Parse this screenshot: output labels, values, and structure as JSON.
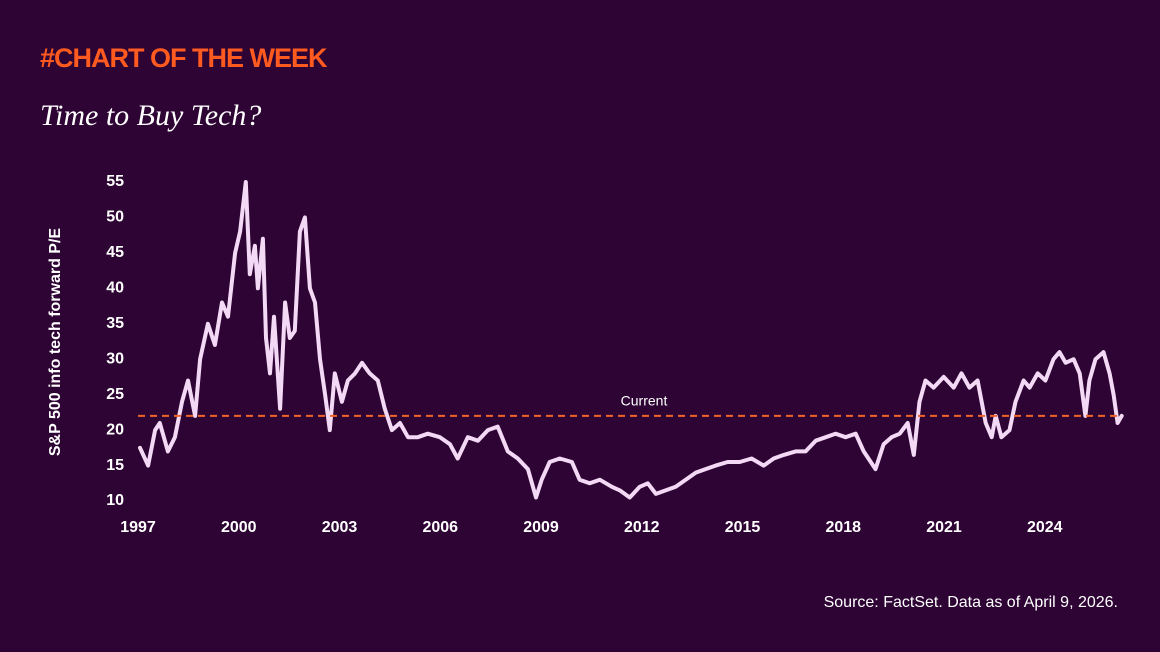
{
  "chart_data": {
    "type": "line",
    "kicker": "#CHART OF THE WEEK",
    "title": "Time to Buy Tech?",
    "y_label": "S&P 500 info tech forward P/E",
    "source": "Source: FactSet. Data as of April 9, 2026.",
    "color": "#f3d9f5",
    "reference_line": {
      "value": 22,
      "label": "Current",
      "color": "#f0642a"
    },
    "xlim": [
      1997,
      2026.3
    ],
    "xticks": [
      1997,
      2000,
      2003,
      2006,
      2009,
      2012,
      2015,
      2018,
      2021,
      2024
    ],
    "ylim": [
      10,
      55
    ],
    "yticks": [
      10,
      15,
      20,
      25,
      30,
      35,
      40,
      45,
      50,
      55
    ],
    "x": [
      1997.06,
      1997.3,
      1997.51,
      1997.65,
      1997.89,
      1998.1,
      1998.31,
      1998.49,
      1998.7,
      1998.85,
      1999.08,
      1999.29,
      1999.5,
      1999.68,
      1999.89,
      2000.04,
      2000.21,
      2000.33,
      2000.48,
      2000.57,
      2000.72,
      2000.81,
      2000.93,
      2001.05,
      2001.23,
      2001.38,
      2001.52,
      2001.67,
      2001.82,
      2001.97,
      2002.12,
      2002.27,
      2002.42,
      2002.57,
      2002.71,
      2002.86,
      2003.07,
      2003.25,
      2003.46,
      2003.67,
      2003.9,
      2004.14,
      2004.35,
      2004.56,
      2004.8,
      2005.04,
      2005.33,
      2005.63,
      2005.99,
      2006.29,
      2006.52,
      2006.82,
      2007.12,
      2007.42,
      2007.71,
      2008.01,
      2008.31,
      2008.61,
      2008.85,
      2009.02,
      2009.26,
      2009.56,
      2009.92,
      2010.15,
      2010.45,
      2010.75,
      2011.11,
      2011.35,
      2011.64,
      2011.94,
      2012.18,
      2012.42,
      2012.71,
      2013.01,
      2013.31,
      2013.61,
      2013.9,
      2014.2,
      2014.56,
      2014.92,
      2015.27,
      2015.63,
      2015.93,
      2016.23,
      2016.58,
      2016.88,
      2017.18,
      2017.48,
      2017.77,
      2018.07,
      2018.37,
      2018.61,
      2018.96,
      2019.2,
      2019.44,
      2019.68,
      2019.92,
      2020.1,
      2020.27,
      2020.45,
      2020.69,
      2020.99,
      2021.29,
      2021.52,
      2021.76,
      2022.0,
      2022.24,
      2022.42,
      2022.54,
      2022.71,
      2022.95,
      2023.13,
      2023.37,
      2023.55,
      2023.79,
      2024.02,
      2024.26,
      2024.44,
      2024.62,
      2024.86,
      2025.04,
      2025.21,
      2025.33,
      2025.51,
      2025.75,
      2025.93,
      2026.05,
      2026.17,
      2026.29
    ],
    "values": [
      17.5,
      15,
      20,
      21,
      17,
      19,
      24,
      27,
      22,
      30,
      35,
      32,
      38,
      36,
      45,
      48,
      55,
      42,
      46,
      40,
      47,
      33,
      28,
      36,
      23,
      38,
      33,
      34,
      48,
      50,
      40,
      38,
      30,
      25,
      20,
      28,
      24,
      27,
      28,
      29.5,
      28,
      27,
      23,
      20,
      21,
      19,
      19,
      19.5,
      19,
      18,
      16,
      19,
      18.5,
      20,
      20.5,
      17,
      16,
      14.5,
      10.5,
      13,
      15.5,
      16,
      15.5,
      13,
      12.5,
      13,
      12,
      11.5,
      10.5,
      12,
      12.5,
      11,
      11.5,
      12,
      13,
      14,
      14.5,
      15,
      15.5,
      15.5,
      16,
      15,
      16,
      16.5,
      17,
      17,
      18.5,
      19,
      19.5,
      19,
      19.5,
      17,
      14.5,
      18,
      19,
      19.5,
      21,
      16.5,
      24,
      27,
      26,
      27.5,
      26,
      28,
      26,
      27,
      21,
      19,
      22,
      19,
      20,
      24,
      27,
      26,
      28,
      27,
      30,
      31,
      29.5,
      30,
      28,
      22,
      27,
      30,
      31,
      28,
      25,
      21,
      22
    ]
  }
}
